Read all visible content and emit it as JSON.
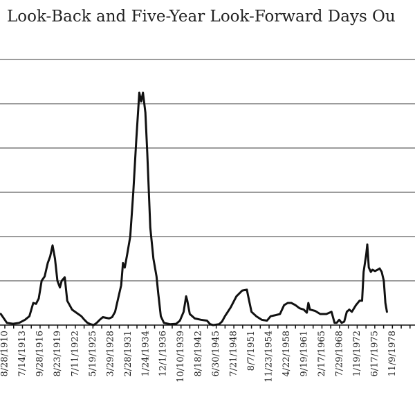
{
  "chart_data": {
    "type": "line",
    "title": "Look-Back and Five-Year Look-Forward Days Ou",
    "xlabel": "",
    "ylabel": "",
    "categories": [
      "8/28/1910",
      "7/14/1913",
      "9/28/1916",
      "8/23/1919",
      "7/11/1922",
      "5/19/1925",
      "3/29/1928",
      "2/28/1931",
      "1/24/1934",
      "12/1/1936",
      "10/10/1939",
      "8/18/1942",
      "6/30/1945",
      "7/21/1948",
      "8/7/1951",
      "11/23/1954",
      "4/22/1958",
      "9/19/1961",
      "2/17/1965",
      "7/29/1968",
      "1/19/1972",
      "6/17/1975",
      "11/9/1978"
    ],
    "grid": true,
    "ylim": [
      0,
      6
    ],
    "series": [
      {
        "values": [
          [
            1908.5,
            0.28
          ],
          [
            1910.0,
            0.25
          ],
          [
            1911.0,
            0.05
          ],
          [
            1912.0,
            0.03
          ],
          [
            1913.0,
            0.05
          ],
          [
            1914.0,
            0.12
          ],
          [
            1914.8,
            0.2
          ],
          [
            1915.5,
            0.5
          ],
          [
            1916.0,
            0.48
          ],
          [
            1916.5,
            0.6
          ],
          [
            1917.0,
            1.0
          ],
          [
            1917.5,
            1.1
          ],
          [
            1918.0,
            1.4
          ],
          [
            1918.4,
            1.55
          ],
          [
            1918.8,
            1.8
          ],
          [
            1919.2,
            1.5
          ],
          [
            1919.6,
            1.0
          ],
          [
            1920.0,
            0.85
          ],
          [
            1920.3,
            1.0
          ],
          [
            1920.8,
            1.08
          ],
          [
            1921.2,
            0.55
          ],
          [
            1921.6,
            0.45
          ],
          [
            1922.0,
            0.35
          ],
          [
            1922.5,
            0.3
          ],
          [
            1923.0,
            0.25
          ],
          [
            1923.5,
            0.2
          ],
          [
            1924.0,
            0.12
          ],
          [
            1924.5,
            0.05
          ],
          [
            1925.0,
            0.02
          ],
          [
            1925.5,
            0.0
          ],
          [
            1926.0,
            0.05
          ],
          [
            1926.5,
            0.12
          ],
          [
            1927.0,
            0.18
          ],
          [
            1928.0,
            0.15
          ],
          [
            1928.5,
            0.18
          ],
          [
            1929.0,
            0.3
          ],
          [
            1929.5,
            0.6
          ],
          [
            1930.0,
            0.9
          ],
          [
            1930.3,
            1.4
          ],
          [
            1930.6,
            1.3
          ],
          [
            1931.0,
            1.6
          ],
          [
            1931.5,
            2.0
          ],
          [
            1932.0,
            3.0
          ],
          [
            1932.5,
            4.2
          ],
          [
            1933.0,
            5.25
          ],
          [
            1933.3,
            5.05
          ],
          [
            1933.6,
            5.25
          ],
          [
            1934.0,
            4.8
          ],
          [
            1934.3,
            3.9
          ],
          [
            1934.8,
            2.2
          ],
          [
            1935.3,
            1.5
          ],
          [
            1935.8,
            1.1
          ],
          [
            1936.1,
            0.7
          ],
          [
            1936.5,
            0.2
          ],
          [
            1937.0,
            0.05
          ],
          [
            1938.0,
            0.02
          ],
          [
            1939.0,
            0.03
          ],
          [
            1939.6,
            0.1
          ],
          [
            1940.2,
            0.3
          ],
          [
            1940.6,
            0.65
          ],
          [
            1940.8,
            0.55
          ],
          [
            1941.2,
            0.25
          ],
          [
            1942.0,
            0.15
          ],
          [
            1943.0,
            0.12
          ],
          [
            1944.0,
            0.1
          ],
          [
            1944.5,
            0.02
          ],
          [
            1945.0,
            0.0
          ],
          [
            1946.0,
            0.02
          ],
          [
            1946.5,
            0.08
          ],
          [
            1947.0,
            0.2
          ],
          [
            1948.0,
            0.4
          ],
          [
            1949.0,
            0.65
          ],
          [
            1950.0,
            0.78
          ],
          [
            1950.8,
            0.8
          ],
          [
            1951.2,
            0.55
          ],
          [
            1951.6,
            0.3
          ],
          [
            1952.5,
            0.2
          ],
          [
            1953.5,
            0.12
          ],
          [
            1954.5,
            0.1
          ],
          [
            1955.2,
            0.2
          ],
          [
            1956.0,
            0.22
          ],
          [
            1957.0,
            0.25
          ],
          [
            1957.8,
            0.45
          ],
          [
            1958.5,
            0.5
          ],
          [
            1959.2,
            0.5
          ],
          [
            1960.0,
            0.45
          ],
          [
            1960.8,
            0.38
          ],
          [
            1961.6,
            0.35
          ],
          [
            1962.2,
            0.28
          ],
          [
            1962.5,
            0.5
          ],
          [
            1962.8,
            0.35
          ],
          [
            1963.8,
            0.32
          ],
          [
            1964.8,
            0.25
          ],
          [
            1966.0,
            0.25
          ],
          [
            1967.0,
            0.3
          ],
          [
            1967.6,
            0.05
          ],
          [
            1968.0,
            0.05
          ],
          [
            1968.5,
            0.12
          ],
          [
            1969.0,
            0.05
          ],
          [
            1969.5,
            0.08
          ],
          [
            1970.0,
            0.3
          ],
          [
            1970.5,
            0.35
          ],
          [
            1971.0,
            0.3
          ],
          [
            1971.8,
            0.45
          ],
          [
            1972.5,
            0.55
          ],
          [
            1973.0,
            0.55
          ],
          [
            1973.3,
            1.2
          ],
          [
            1973.8,
            1.6
          ],
          [
            1974.0,
            1.82
          ],
          [
            1974.3,
            1.3
          ],
          [
            1974.7,
            1.2
          ],
          [
            1975.0,
            1.25
          ],
          [
            1975.5,
            1.22
          ],
          [
            1976.0,
            1.25
          ],
          [
            1976.4,
            1.28
          ],
          [
            1976.8,
            1.2
          ],
          [
            1977.2,
            1.0
          ],
          [
            1977.5,
            0.5
          ],
          [
            1977.8,
            0.3
          ]
        ]
      }
    ]
  }
}
